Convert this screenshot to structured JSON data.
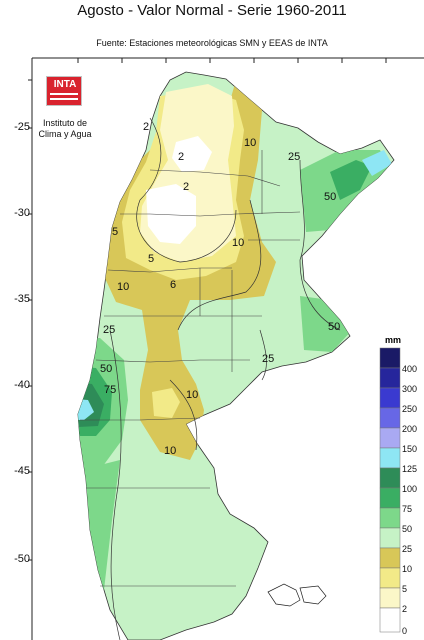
{
  "title": "Agosto - Valor Normal - Serie 1960-2011",
  "subtitle": "Fuente: Estaciones meteorológicas SMN y EEAS de INTA",
  "logo": {
    "text": "INTA",
    "institute_lines": [
      "Instituto de",
      "Clima y Agua"
    ]
  },
  "latitude_ticks": [
    -25,
    -30,
    -35,
    -40,
    -45,
    -50
  ],
  "legend": {
    "unit": "mm",
    "classes": [
      {
        "label": "400",
        "color": "#1a1a66"
      },
      {
        "label": "300",
        "color": "#26269c"
      },
      {
        "label": "250",
        "color": "#3a3ad0"
      },
      {
        "label": "200",
        "color": "#6767e6"
      },
      {
        "label": "150",
        "color": "#a9a9f2"
      },
      {
        "label": "125",
        "color": "#8ee6f4"
      },
      {
        "label": "100",
        "color": "#2e8c58"
      },
      {
        "label": "75",
        "color": "#3aae63"
      },
      {
        "label": "50",
        "color": "#7dd88a"
      },
      {
        "label": "25",
        "color": "#c6f2c6"
      },
      {
        "label": "10",
        "color": "#d8c758"
      },
      {
        "label": "5",
        "color": "#f2ea88"
      },
      {
        "label": "2",
        "color": "#fbf7c8"
      },
      {
        "label": "0",
        "color": "#ffffff"
      }
    ]
  },
  "contour_labels": [
    "2",
    "2",
    "2",
    "5",
    "5",
    "6",
    "10",
    "10",
    "10",
    "10",
    "10",
    "25",
    "25",
    "25",
    "50",
    "50",
    "50",
    "75"
  ]
}
